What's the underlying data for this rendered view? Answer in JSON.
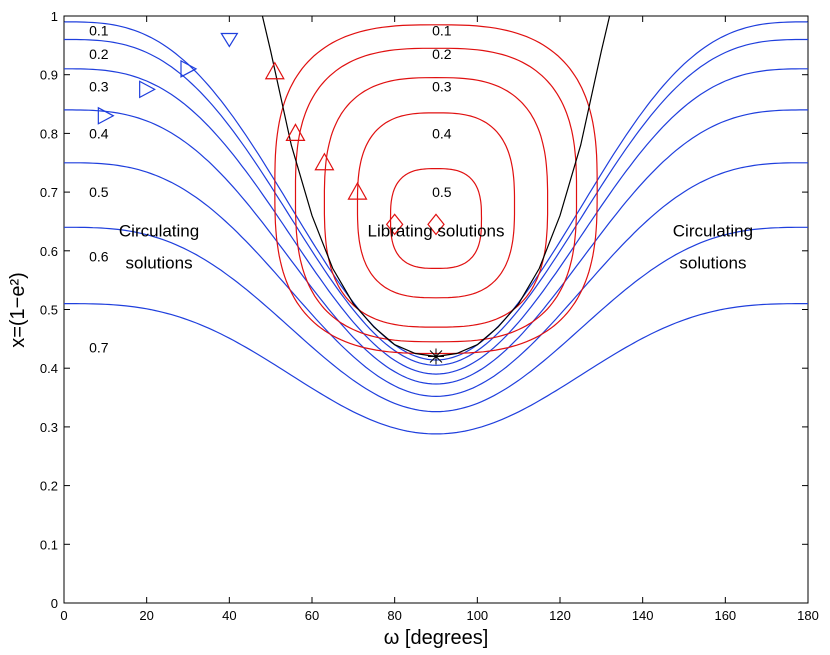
{
  "chart_data": {
    "type": "line",
    "xlabel": "ω [degrees]",
    "ylabel": "x=(1−e²)",
    "xlim": [
      0,
      180
    ],
    "ylim": [
      0,
      1
    ],
    "xticks": [
      "0",
      "20",
      "40",
      "60",
      "80",
      "100",
      "120",
      "140",
      "160",
      "180"
    ],
    "yticks": [
      "0",
      "0.1",
      "0.2",
      "0.3",
      "0.4",
      "0.5",
      "0.6",
      "0.7",
      "0.8",
      "0.9",
      "1"
    ],
    "grid": false,
    "colors": {
      "circulating": "#1f3fdd",
      "librating": "#e01010",
      "separatrix": "#000000"
    },
    "separatrix": {
      "name": "",
      "x": [
        48,
        50,
        55,
        60,
        65,
        70,
        75,
        80,
        85,
        90,
        95,
        100,
        105,
        110,
        115,
        120,
        125,
        130,
        132
      ],
      "y": [
        1.0,
        0.94,
        0.78,
        0.66,
        0.57,
        0.51,
        0.47,
        0.44,
        0.425,
        0.42,
        0.425,
        0.44,
        0.47,
        0.51,
        0.57,
        0.66,
        0.78,
        0.94,
        1.0
      ]
    },
    "circulating_curves": [
      {
        "level": "0.1",
        "y_edge": 0.99,
        "y_center": 0.414
      },
      {
        "level": "0.2",
        "y_edge": 0.96,
        "y_center": 0.405
      },
      {
        "level": "0.3",
        "y_edge": 0.91,
        "y_center": 0.39
      },
      {
        "level": "0.4",
        "y_edge": 0.84,
        "y_center": 0.373
      },
      {
        "level": "0.5",
        "y_edge": 0.75,
        "y_center": 0.352
      },
      {
        "level": "0.6",
        "y_edge": 0.64,
        "y_center": 0.326
      },
      {
        "level": "0.7",
        "y_edge": 0.51,
        "y_center": 0.288
      }
    ],
    "librating_curves": [
      {
        "level": "0.1",
        "x_min": 51,
        "x_max": 129,
        "y_min": 0.425,
        "y_max": 0.985
      },
      {
        "level": "0.2",
        "x_min": 56,
        "x_max": 124,
        "y_min": 0.445,
        "y_max": 0.945
      },
      {
        "level": "0.3",
        "x_min": 63,
        "x_max": 117,
        "y_min": 0.47,
        "y_max": 0.895
      },
      {
        "level": "0.4",
        "x_min": 71,
        "x_max": 109,
        "y_min": 0.52,
        "y_max": 0.835
      },
      {
        "level": "0.5",
        "x_min": 79,
        "x_max": 101,
        "y_min": 0.57,
        "y_max": 0.74
      }
    ],
    "markers": {
      "blue_triangles": [
        {
          "x": 40,
          "y": 0.96
        },
        {
          "x": 30,
          "y": 0.91
        },
        {
          "x": 20,
          "y": 0.875
        },
        {
          "x": 10,
          "y": 0.83
        }
      ],
      "red_triangles": [
        {
          "x": 51,
          "y": 0.905
        },
        {
          "x": 56,
          "y": 0.8
        },
        {
          "x": 63,
          "y": 0.75
        },
        {
          "x": 71,
          "y": 0.7
        }
      ],
      "red_diamonds": [
        {
          "x": 80,
          "y": 0.645
        },
        {
          "x": 90,
          "y": 0.645
        }
      ],
      "equilibrium": {
        "x": 90,
        "y": 0.42
      }
    },
    "level_labels_left": [
      {
        "text": "0.1",
        "x": 8,
        "y": 0.975
      },
      {
        "text": "0.2",
        "x": 8,
        "y": 0.935
      },
      {
        "text": "0.3",
        "x": 8,
        "y": 0.88
      },
      {
        "text": "0.4",
        "x": 8,
        "y": 0.8
      },
      {
        "text": "0.5",
        "x": 8,
        "y": 0.7
      },
      {
        "text": "0.6",
        "x": 8,
        "y": 0.59
      },
      {
        "text": "0.7",
        "x": 8,
        "y": 0.435
      }
    ],
    "level_labels_center": [
      {
        "text": "0.1",
        "x": 91,
        "y": 0.975
      },
      {
        "text": "0.2",
        "x": 91,
        "y": 0.935
      },
      {
        "text": "0.3",
        "x": 91,
        "y": 0.88
      },
      {
        "text": "0.4",
        "x": 91,
        "y": 0.8
      },
      {
        "text": "0.5",
        "x": 91,
        "y": 0.7
      }
    ],
    "annotations": [
      {
        "text": "Circulating",
        "x": 23,
        "y": 0.635
      },
      {
        "text": "solutions",
        "x": 23,
        "y": 0.58
      },
      {
        "text": "Librating solutions",
        "x": 90,
        "y": 0.635
      },
      {
        "text": "Circulating",
        "x": 157,
        "y": 0.635
      },
      {
        "text": "solutions",
        "x": 157,
        "y": 0.58
      }
    ]
  }
}
